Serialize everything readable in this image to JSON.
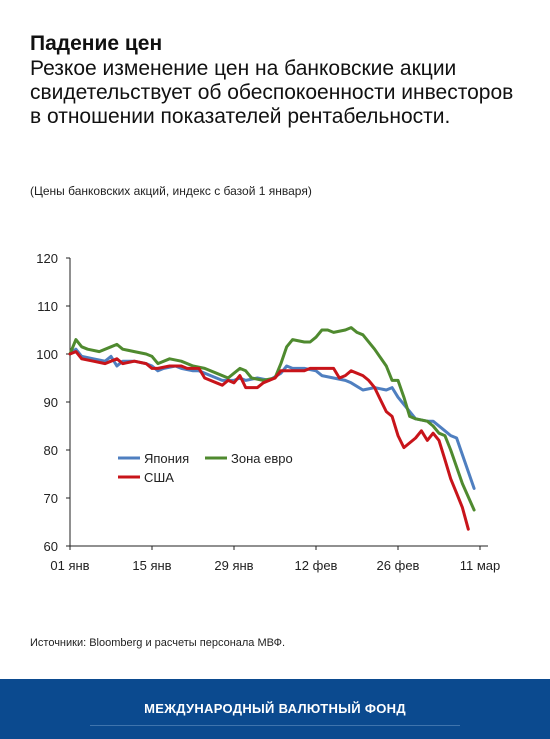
{
  "title": "Падение цен",
  "subtitle": "Резкое изменение цен на банковские акции свидетельствует об обеспокоенности инвесторов в отношении показателей рентабельности.",
  "note": "(Цены банковских акций, индекс с базой 1 января)",
  "source": "Источники: Bloomberg и расчеты персонала МВФ.",
  "footer": "МЕЖДУНАРОДНЫЙ ВАЛЮТНЫЙ ФОНД",
  "chart_data": {
    "type": "line",
    "title": "",
    "xlabel": "",
    "ylabel": "",
    "ylim": [
      60,
      120
    ],
    "xlim": [
      0,
      70
    ],
    "yticks": [
      60,
      70,
      80,
      90,
      100,
      110,
      120
    ],
    "xticks": [
      {
        "day": 0,
        "label": "01 янв"
      },
      {
        "day": 14,
        "label": "15 янв"
      },
      {
        "day": 28,
        "label": "29 янв"
      },
      {
        "day": 42,
        "label": "12 фев"
      },
      {
        "day": 56,
        "label": "26 фев"
      },
      {
        "day": 70,
        "label": "11 мар"
      }
    ],
    "grid": false,
    "legend": "bottom-left",
    "series": [
      {
        "name": "Япония",
        "color": "#4f7fc0",
        "points": [
          [
            0,
            100
          ],
          [
            1,
            101
          ],
          [
            2,
            99.5
          ],
          [
            4,
            99
          ],
          [
            6,
            98.5
          ],
          [
            7,
            99.5
          ],
          [
            8,
            97.5
          ],
          [
            9,
            98.5
          ],
          [
            11,
            98.5
          ],
          [
            13,
            98
          ],
          [
            14,
            97.5
          ],
          [
            15,
            96.5
          ],
          [
            16,
            97
          ],
          [
            18,
            97.5
          ],
          [
            19,
            97
          ],
          [
            21,
            96.5
          ],
          [
            22,
            96.5
          ],
          [
            24,
            95.5
          ],
          [
            26,
            94.5
          ],
          [
            28,
            94.5
          ],
          [
            29,
            95
          ],
          [
            30,
            94.5
          ],
          [
            32,
            95
          ],
          [
            34,
            94.5
          ],
          [
            36,
            96
          ],
          [
            37,
            97.5
          ],
          [
            38,
            97
          ],
          [
            40,
            97
          ],
          [
            42,
            96.5
          ],
          [
            43,
            95.5
          ],
          [
            45,
            95
          ],
          [
            47,
            94.5
          ],
          [
            48,
            94
          ],
          [
            50,
            92.5
          ],
          [
            52,
            93
          ],
          [
            54,
            92.5
          ],
          [
            55,
            93
          ],
          [
            56,
            91
          ],
          [
            58,
            88
          ],
          [
            59,
            86.5
          ],
          [
            61,
            86
          ],
          [
            62,
            86
          ],
          [
            64,
            84
          ],
          [
            65,
            83
          ],
          [
            66,
            82.5
          ],
          [
            67,
            79
          ],
          [
            69,
            72
          ]
        ]
      },
      {
        "name": "Зона евро",
        "color": "#4f8a2f",
        "points": [
          [
            0,
            100
          ],
          [
            1,
            103
          ],
          [
            2,
            101.5
          ],
          [
            3,
            101
          ],
          [
            5,
            100.5
          ],
          [
            7,
            101.5
          ],
          [
            8,
            102
          ],
          [
            9,
            101
          ],
          [
            11,
            100.5
          ],
          [
            13,
            100
          ],
          [
            14,
            99.5
          ],
          [
            15,
            98
          ],
          [
            17,
            99
          ],
          [
            19,
            98.5
          ],
          [
            21,
            97.5
          ],
          [
            23,
            97
          ],
          [
            25,
            96
          ],
          [
            27,
            95
          ],
          [
            28,
            96
          ],
          [
            29,
            97
          ],
          [
            30,
            96.5
          ],
          [
            31,
            95
          ],
          [
            33,
            94.5
          ],
          [
            35,
            95
          ],
          [
            36,
            98
          ],
          [
            37,
            101.5
          ],
          [
            38,
            103
          ],
          [
            40,
            102.5
          ],
          [
            41,
            102.5
          ],
          [
            42,
            103.5
          ],
          [
            43,
            105
          ],
          [
            44,
            105
          ],
          [
            45,
            104.5
          ],
          [
            47,
            105
          ],
          [
            48,
            105.5
          ],
          [
            49,
            104.5
          ],
          [
            50,
            104
          ],
          [
            52,
            101
          ],
          [
            54,
            97.5
          ],
          [
            55,
            94.5
          ],
          [
            56,
            94.5
          ],
          [
            57,
            91
          ],
          [
            58,
            87
          ],
          [
            59,
            86.5
          ],
          [
            61,
            86
          ],
          [
            62,
            85
          ],
          [
            63,
            83.5
          ],
          [
            64,
            83
          ],
          [
            65,
            80
          ],
          [
            67,
            73
          ],
          [
            69,
            67.5
          ]
        ]
      },
      {
        "name": "США",
        "color": "#c8141a",
        "points": [
          [
            0,
            100
          ],
          [
            1,
            100.5
          ],
          [
            2,
            99
          ],
          [
            4,
            98.5
          ],
          [
            6,
            98
          ],
          [
            7,
            98.5
          ],
          [
            8,
            99
          ],
          [
            9,
            98
          ],
          [
            11,
            98.5
          ],
          [
            13,
            98
          ],
          [
            14,
            97
          ],
          [
            15,
            97
          ],
          [
            17,
            97.5
          ],
          [
            19,
            97.5
          ],
          [
            20,
            97
          ],
          [
            22,
            97
          ],
          [
            23,
            95
          ],
          [
            25,
            94
          ],
          [
            26,
            93.5
          ],
          [
            27,
            94.5
          ],
          [
            28,
            94
          ],
          [
            29,
            95.5
          ],
          [
            30,
            93
          ],
          [
            32,
            93
          ],
          [
            33,
            94
          ],
          [
            35,
            95
          ],
          [
            36,
            96.5
          ],
          [
            38,
            96.5
          ],
          [
            40,
            96.5
          ],
          [
            41,
            97
          ],
          [
            43,
            97
          ],
          [
            45,
            97
          ],
          [
            46,
            95
          ],
          [
            47,
            95.5
          ],
          [
            48,
            96.5
          ],
          [
            50,
            95.5
          ],
          [
            51,
            94.5
          ],
          [
            52,
            93
          ],
          [
            53,
            90.5
          ],
          [
            54,
            88
          ],
          [
            55,
            87
          ],
          [
            56,
            83
          ],
          [
            57,
            80.5
          ],
          [
            59,
            82.5
          ],
          [
            60,
            84
          ],
          [
            61,
            82
          ],
          [
            62,
            83.5
          ],
          [
            63,
            82
          ],
          [
            64,
            78
          ],
          [
            65,
            74
          ],
          [
            66,
            71
          ],
          [
            67,
            68
          ],
          [
            68,
            63.5
          ]
        ]
      }
    ]
  }
}
